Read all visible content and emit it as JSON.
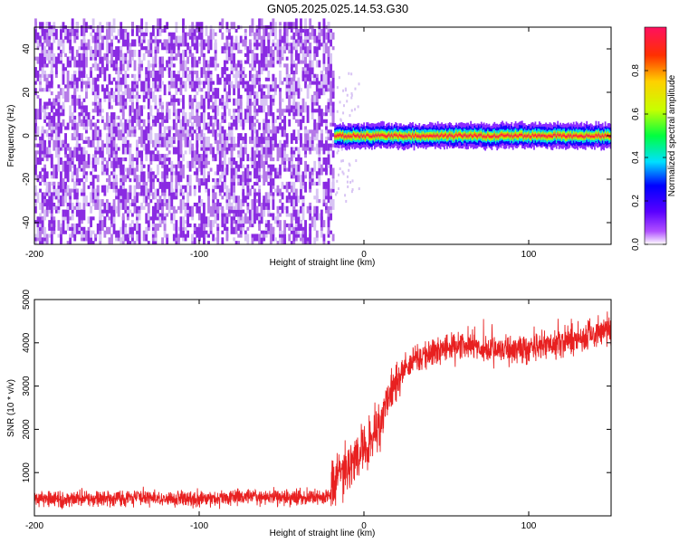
{
  "title": "GN05.2025.025.14.53.G30",
  "colors": {
    "scatter": "#8a2be2",
    "snr_line": "#e82020",
    "axes": "#000000"
  },
  "colorbar": {
    "label": "Normalized spectral amplitude",
    "ticks": [
      "0.0",
      "0.2",
      "0.4",
      "0.6",
      "0.8"
    ],
    "tick_values": [
      0.0,
      0.2,
      0.4,
      0.6,
      0.8
    ],
    "range": [
      0,
      1
    ],
    "colormap": "rainbow"
  },
  "chart_data": [
    {
      "type": "heatmap",
      "title": "GN05.2025.025.14.53.G30",
      "xlabel": "Height of straight line (km)",
      "ylabel": "Frequency (Hz)",
      "xlim": [
        -200,
        150
      ],
      "ylim": [
        -50,
        50
      ],
      "xticks": [
        "-200",
        "-100",
        "0",
        "100"
      ],
      "xtick_values": [
        -200,
        -100,
        0,
        100
      ],
      "yticks": [
        "-40",
        "-20",
        "0",
        "20",
        "40"
      ],
      "ytick_values": [
        -40,
        -20,
        0,
        20,
        40
      ],
      "noise_region": {
        "x": [
          -200,
          -18
        ],
        "y": [
          -50,
          50
        ],
        "amplitude": 0.15
      },
      "signal_band": {
        "x": [
          -18,
          150
        ],
        "frequency": 0,
        "amplitude": 1.0,
        "halfwidth_hz": 4
      },
      "grid": false
    },
    {
      "type": "line",
      "xlabel": "Height of straight line (km)",
      "ylabel": "SNR (10 * v/v)",
      "xlim": [
        -200,
        150
      ],
      "ylim": [
        0,
        5000
      ],
      "xticks": [
        "-200",
        "-100",
        "0",
        "100"
      ],
      "xtick_values": [
        -200,
        -100,
        0,
        100
      ],
      "yticks": [
        "1000",
        "2000",
        "3000",
        "4000",
        "5000"
      ],
      "ytick_values": [
        1000,
        2000,
        3000,
        4000,
        5000
      ],
      "series": [
        {
          "x": [
            -200,
            -180,
            -160,
            -140,
            -120,
            -100,
            -80,
            -60,
            -40,
            -25,
            -20,
            -18,
            -15,
            -10,
            -5,
            0,
            5,
            10,
            15,
            20,
            25,
            30,
            40,
            50,
            60,
            70,
            80,
            90,
            100,
            110,
            120,
            130,
            140,
            150
          ],
          "y": [
            380,
            390,
            400,
            420,
            410,
            400,
            420,
            450,
            430,
            430,
            500,
            700,
            900,
            1100,
            1300,
            1550,
            1800,
            2200,
            2700,
            3100,
            3400,
            3600,
            3750,
            3900,
            3950,
            3900,
            3850,
            3850,
            3900,
            3950,
            4000,
            4100,
            4200,
            4350
          ]
        }
      ],
      "noise_amplitude": 160,
      "grid": false
    }
  ]
}
